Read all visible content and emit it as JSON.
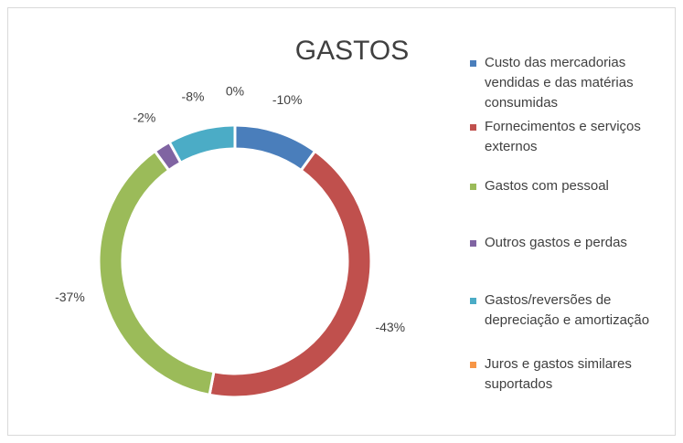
{
  "chart_data": {
    "type": "donut",
    "title": "GASTOS",
    "categories": [
      "Custo das mercadorias vendidas e das matérias consumidas",
      "Fornecimentos e serviços externos",
      "Gastos com pessoal",
      "Outros gastos e perdas",
      "Gastos/reversões de depreciação e amortização",
      "Juros e gastos similares suportados"
    ],
    "values": [
      -10,
      -43,
      -37,
      -2,
      -8,
      0
    ],
    "value_labels": [
      "-10%",
      "-43%",
      "-37%",
      "-2%",
      "-8%",
      "0%"
    ],
    "colors": [
      "#4a7ebb",
      "#c0504d",
      "#9bbb59",
      "#8064a2",
      "#4bacc6",
      "#f79646"
    ],
    "legend": "right"
  }
}
